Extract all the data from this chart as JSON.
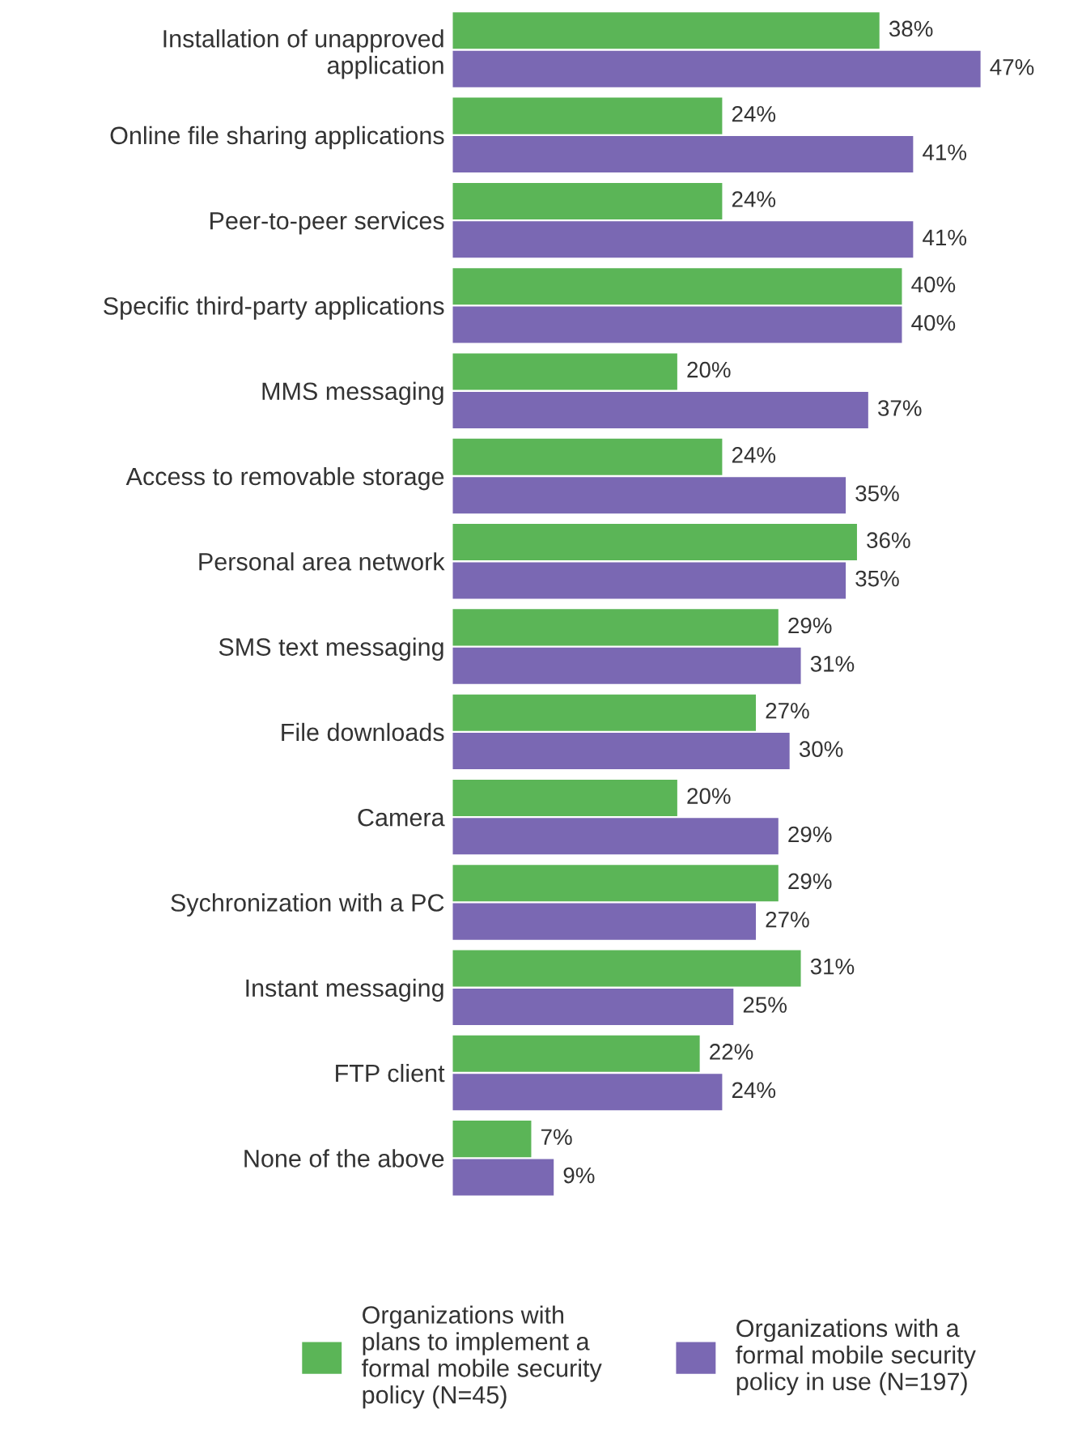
{
  "chart_data": {
    "type": "bar",
    "orientation": "horizontal",
    "legend": "bottom",
    "grid": false,
    "tick_labels": "y",
    "categories": [
      "Installation of unapproved\napplication",
      "Online file sharing applications",
      "Peer-to-peer services",
      "Specific third-party applications",
      "MMS messaging",
      "Access to removable storage",
      "Personal area network",
      "SMS text messaging",
      "File downloads",
      "Camera",
      "Sychronization with a PC",
      "Instant messaging",
      "FTP client",
      "None of the above"
    ],
    "series": [
      {
        "name": "Organizations with\nplans to implement a\nformal mobile security\npolicy (N=45)",
        "color": "#5bb557",
        "values": [
          38,
          24,
          24,
          40,
          20,
          24,
          36,
          29,
          27,
          20,
          29,
          31,
          22,
          7
        ],
        "value_labels": [
          "38%",
          "24%",
          "24%",
          "40%",
          "20%",
          "24%",
          "36%",
          "29%",
          "27%",
          "20%",
          "29%",
          "31%",
          "22%",
          "7%"
        ]
      },
      {
        "name": "Organizations with a\nformal mobile security\npolicy in use (N=197)",
        "color": "#7a68b3",
        "values": [
          47,
          41,
          41,
          40,
          37,
          35,
          35,
          31,
          30,
          29,
          27,
          25,
          24,
          9
        ],
        "value_labels": [
          "47%",
          "41%",
          "41%",
          "40%",
          "37%",
          "35%",
          "35%",
          "31%",
          "30%",
          "29%",
          "27%",
          "25%",
          "24%",
          "9%"
        ]
      }
    ]
  }
}
